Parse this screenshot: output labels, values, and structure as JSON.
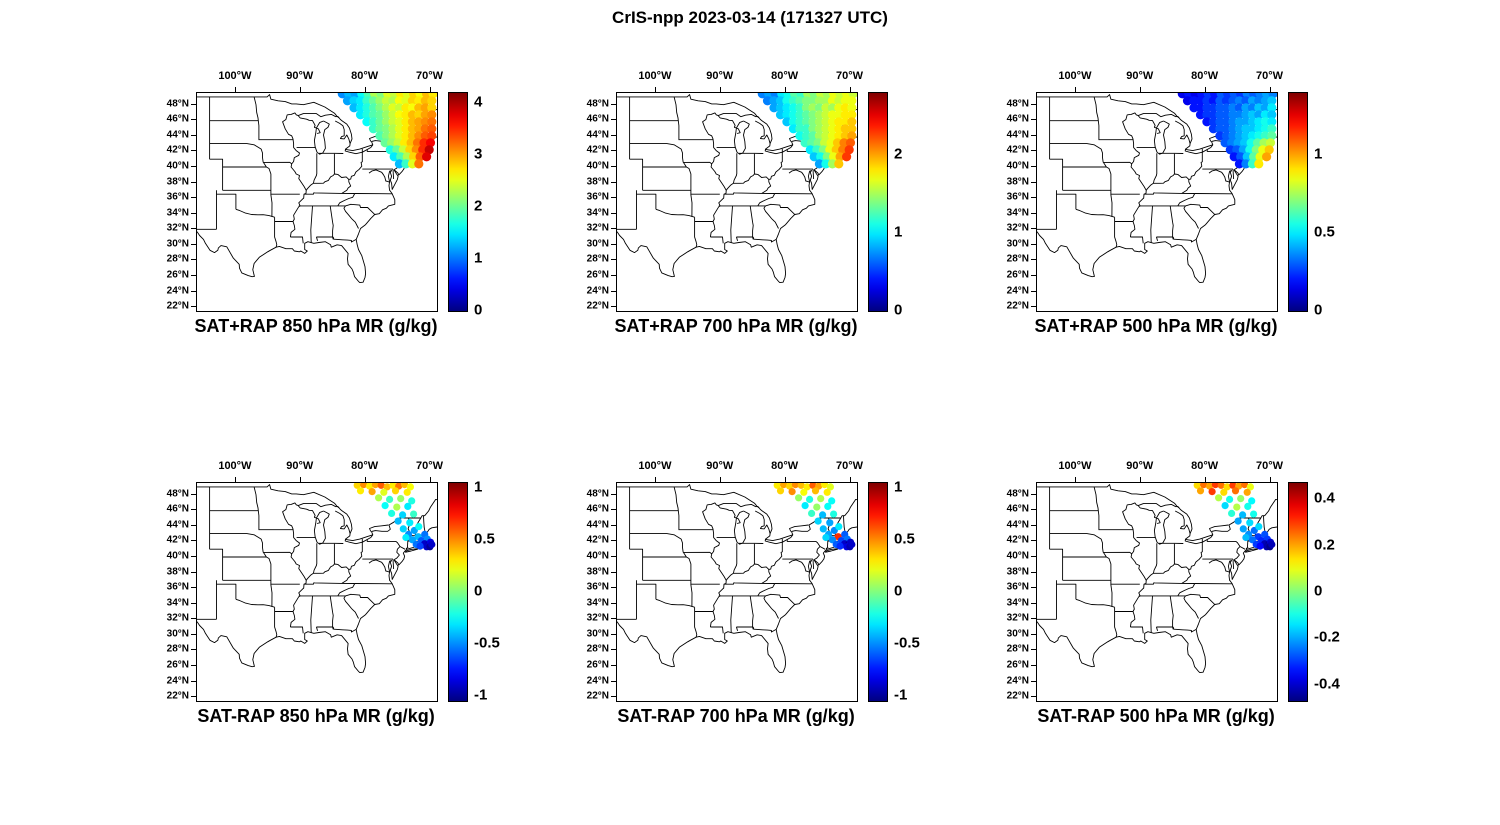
{
  "figure": {
    "title": "CrIS-npp 2023-03-14 (171327 UTC)"
  },
  "chart_data": {
    "type": "scatter",
    "title": "CrIS-npp 2023-03-14 (171327 UTC)",
    "colormap": "jet",
    "projection": {
      "lon_range": [
        -106,
        -69
      ],
      "lat_range": [
        21.5,
        49.5
      ]
    },
    "lon_ticks": {
      "values": [
        -100,
        -90,
        -80,
        -70
      ],
      "labels": [
        "100°W",
        "90°W",
        "80°W",
        "70°W"
      ]
    },
    "lat_ticks": {
      "values": [
        48,
        46,
        44,
        42,
        40,
        38,
        36,
        34,
        32,
        30,
        28,
        26,
        24,
        22
      ],
      "labels": [
        "48°N",
        "46°N",
        "44°N",
        "42°N",
        "40°N",
        "38°N",
        "36°N",
        "34°N",
        "32°N",
        "30°N",
        "28°N",
        "26°N",
        "24°N",
        "22°N"
      ]
    },
    "swath_rows_full": [
      {
        "lat": 49.4,
        "lon_start": -83.6,
        "lon_step": 1.0,
        "count": 15
      },
      {
        "lat": 48.5,
        "lon_start": -82.8,
        "lon_step": 1.0,
        "count": 14
      },
      {
        "lat": 47.6,
        "lon_start": -81.8,
        "lon_step": 1.0,
        "count": 13
      },
      {
        "lat": 46.7,
        "lon_start": -80.8,
        "lon_step": 1.0,
        "count": 12
      },
      {
        "lat": 45.8,
        "lon_start": -79.8,
        "lon_step": 1.0,
        "count": 11
      },
      {
        "lat": 44.9,
        "lon_start": -78.8,
        "lon_step": 1.0,
        "count": 10
      },
      {
        "lat": 44.0,
        "lon_start": -77.8,
        "lon_step": 1.0,
        "count": 9
      },
      {
        "lat": 43.1,
        "lon_start": -77.0,
        "lon_step": 1.0,
        "count": 8
      },
      {
        "lat": 42.2,
        "lon_start": -76.2,
        "lon_step": 1.0,
        "count": 7
      },
      {
        "lat": 41.3,
        "lon_start": -75.6,
        "lon_step": 1.0,
        "count": 6
      },
      {
        "lat": 40.4,
        "lon_start": -74.8,
        "lon_step": 1.0,
        "count": 4
      }
    ],
    "footprints_sparse": [
      [
        -81.3,
        49.2
      ],
      [
        -80.3,
        49.3
      ],
      [
        -79.4,
        49.1
      ],
      [
        -78.5,
        49.3
      ],
      [
        -77.6,
        49.2
      ],
      [
        -76.7,
        49.0
      ],
      [
        -75.8,
        49.2
      ],
      [
        -74.9,
        49.1
      ],
      [
        -74.0,
        49.3
      ],
      [
        -73.1,
        49.0
      ],
      [
        -80.8,
        48.5
      ],
      [
        -79.0,
        48.4
      ],
      [
        -77.2,
        48.3
      ],
      [
        -75.4,
        48.5
      ],
      [
        -73.6,
        48.3
      ],
      [
        -78.0,
        47.6
      ],
      [
        -76.3,
        47.4
      ],
      [
        -74.6,
        47.5
      ],
      [
        -72.9,
        47.2
      ],
      [
        -77.0,
        46.6
      ],
      [
        -75.2,
        46.4
      ],
      [
        -73.5,
        46.5
      ],
      [
        -76.0,
        45.6
      ],
      [
        -74.3,
        45.4
      ],
      [
        -72.6,
        45.5
      ],
      [
        -75.0,
        44.6
      ],
      [
        -73.2,
        44.4
      ],
      [
        -74.2,
        43.6
      ],
      [
        -72.5,
        43.4
      ],
      [
        -71.8,
        43.9
      ],
      [
        -73.4,
        42.9
      ],
      [
        -71.9,
        42.6
      ],
      [
        -70.9,
        42.9
      ],
      [
        -72.8,
        42.2
      ],
      [
        -71.4,
        42.1
      ],
      [
        -70.5,
        42.3
      ],
      [
        -73.8,
        42.5
      ],
      [
        -70.9,
        41.7
      ],
      [
        -70.3,
        41.6
      ],
      [
        -70.0,
        41.9
      ],
      [
        -70.6,
        41.3
      ],
      [
        -70.1,
        41.3
      ],
      [
        -69.8,
        41.6
      ],
      [
        -72.2,
        41.6
      ],
      [
        -71.6,
        41.4
      ]
    ],
    "panels": [
      {
        "id": "sat-plus-rap-850",
        "title": "SAT+RAP 850 hPa MR (g/kg)",
        "points": "full",
        "vmin": 0,
        "vmax": 4.2,
        "colorbar_ticks": [
          0,
          1,
          2,
          3,
          4
        ],
        "colorbar_tick_labels": [
          "0",
          "1",
          "2",
          "3",
          "4"
        ],
        "values_by_row": [
          [
            1.1,
            1.3,
            1.2,
            1.6,
            1.9,
            2.3,
            2.1,
            2.5,
            2.4,
            2.7,
            2.5,
            2.8,
            2.6,
            2.9,
            2.7
          ],
          [
            1.2,
            1.4,
            1.5,
            1.8,
            2.0,
            2.2,
            2.4,
            2.3,
            2.6,
            2.5,
            2.8,
            2.7,
            2.9,
            2.8
          ],
          [
            1.3,
            1.5,
            1.7,
            1.9,
            2.1,
            2.3,
            2.5,
            2.4,
            2.7,
            2.6,
            2.9,
            3.0,
            2.8
          ],
          [
            1.5,
            1.7,
            1.9,
            2.0,
            2.2,
            2.4,
            2.6,
            2.7,
            2.9,
            2.8,
            3.0,
            3.1
          ],
          [
            1.6,
            1.8,
            2.0,
            2.2,
            2.4,
            2.5,
            2.7,
            2.9,
            3.0,
            3.1,
            3.2
          ],
          [
            1.8,
            2.0,
            2.1,
            2.3,
            2.5,
            2.7,
            2.9,
            3.0,
            3.2,
            3.3
          ],
          [
            1.9,
            2.1,
            2.3,
            2.5,
            2.7,
            2.9,
            3.1,
            3.3,
            3.4
          ],
          [
            2.0,
            2.2,
            2.4,
            2.7,
            2.9,
            3.2,
            3.5,
            3.7
          ],
          [
            1.7,
            2.0,
            2.4,
            2.8,
            3.1,
            3.5,
            3.9
          ],
          [
            1.5,
            1.9,
            2.3,
            2.8,
            3.3,
            3.8
          ],
          [
            1.3,
            1.8,
            2.5,
            3.2
          ]
        ]
      },
      {
        "id": "sat-plus-rap-700",
        "title": "SAT+RAP 700 hPa MR (g/kg)",
        "points": "full",
        "vmin": 0,
        "vmax": 2.8,
        "colorbar_ticks": [
          0,
          1,
          2
        ],
        "colorbar_tick_labels": [
          "0",
          "1",
          "2"
        ],
        "values_by_row": [
          [
            0.7,
            0.8,
            0.7,
            1.0,
            1.1,
            1.3,
            1.2,
            1.5,
            1.4,
            1.6,
            1.5,
            1.7,
            1.6,
            1.7,
            1.6
          ],
          [
            0.7,
            0.8,
            0.9,
            1.1,
            1.2,
            1.3,
            1.4,
            1.4,
            1.5,
            1.5,
            1.7,
            1.6,
            1.7,
            1.7
          ],
          [
            0.8,
            0.9,
            1.0,
            1.1,
            1.2,
            1.4,
            1.5,
            1.4,
            1.6,
            1.5,
            1.7,
            1.8,
            1.7
          ],
          [
            0.9,
            1.0,
            1.1,
            1.2,
            1.3,
            1.4,
            1.5,
            1.6,
            1.7,
            1.7,
            1.8,
            1.8
          ],
          [
            0.9,
            1.1,
            1.2,
            1.3,
            1.4,
            1.5,
            1.6,
            1.7,
            1.8,
            1.8,
            1.9
          ],
          [
            1.0,
            1.2,
            1.2,
            1.4,
            1.5,
            1.6,
            1.7,
            1.8,
            1.9,
            1.9
          ],
          [
            1.1,
            1.2,
            1.3,
            1.5,
            1.6,
            1.7,
            1.8,
            1.9,
            2.0
          ],
          [
            1.2,
            1.3,
            1.4,
            1.6,
            1.7,
            1.9,
            2.1,
            2.2
          ],
          [
            1.0,
            1.2,
            1.4,
            1.7,
            1.9,
            2.1,
            2.3
          ],
          [
            0.9,
            1.1,
            1.4,
            1.7,
            2.0,
            2.3
          ],
          [
            0.8,
            1.1,
            1.5,
            1.9
          ]
        ]
      },
      {
        "id": "sat-plus-rap-500",
        "title": "SAT+RAP 500 hPa MR (g/kg)",
        "points": "full",
        "vmin": 0,
        "vmax": 1.4,
        "colorbar_ticks": [
          0,
          0.5,
          1
        ],
        "colorbar_tick_labels": [
          "0",
          "0.5",
          "1"
        ],
        "values_by_row": [
          [
            0.15,
            0.2,
            0.15,
            0.2,
            0.25,
            0.2,
            0.3,
            0.25,
            0.3,
            0.25,
            0.35,
            0.3,
            0.35,
            0.4,
            0.35
          ],
          [
            0.15,
            0.2,
            0.2,
            0.25,
            0.2,
            0.3,
            0.25,
            0.3,
            0.35,
            0.3,
            0.4,
            0.35,
            0.4,
            0.45
          ],
          [
            0.2,
            0.2,
            0.25,
            0.25,
            0.3,
            0.3,
            0.35,
            0.3,
            0.4,
            0.35,
            0.45,
            0.4,
            0.5
          ],
          [
            0.2,
            0.25,
            0.25,
            0.3,
            0.3,
            0.35,
            0.35,
            0.4,
            0.45,
            0.4,
            0.5,
            0.45
          ],
          [
            0.2,
            0.25,
            0.3,
            0.3,
            0.35,
            0.4,
            0.4,
            0.45,
            0.5,
            0.55,
            0.5
          ],
          [
            0.25,
            0.3,
            0.3,
            0.35,
            0.4,
            0.45,
            0.45,
            0.5,
            0.55,
            0.6
          ],
          [
            0.25,
            0.3,
            0.35,
            0.4,
            0.45,
            0.5,
            0.55,
            0.6,
            0.65
          ],
          [
            0.3,
            0.35,
            0.4,
            0.45,
            0.55,
            0.65,
            0.75,
            0.8
          ],
          [
            0.25,
            0.3,
            0.4,
            0.55,
            0.7,
            0.85,
            0.95
          ],
          [
            0.2,
            0.3,
            0.45,
            0.65,
            0.85,
            1.0
          ],
          [
            0.2,
            0.35,
            0.6,
            0.9
          ]
        ]
      },
      {
        "id": "sat-minus-rap-850",
        "title": "SAT-RAP 850 hPa MR (g/kg)",
        "points": "sparse",
        "vmin": -1.05,
        "vmax": 1.05,
        "colorbar_ticks": [
          -1,
          -0.5,
          0,
          0.5,
          1
        ],
        "colorbar_tick_labels": [
          "-1",
          "-0.5",
          "0",
          "0.5",
          "1"
        ],
        "values": [
          0.35,
          0.5,
          0.3,
          0.45,
          0.6,
          0.4,
          0.3,
          0.55,
          0.4,
          0.25,
          0.3,
          0.45,
          0.2,
          0.35,
          0.3,
          0.1,
          -0.15,
          0.05,
          -0.2,
          -0.25,
          0.1,
          -0.3,
          -0.2,
          -0.35,
          -0.15,
          -0.4,
          -0.3,
          -0.35,
          -0.45,
          -0.25,
          -0.5,
          -0.4,
          -0.55,
          -0.45,
          -0.6,
          -0.5,
          -0.3,
          -0.9,
          -0.95,
          -0.85,
          -0.9,
          -1.0,
          -0.9,
          -0.55,
          -0.65
        ]
      },
      {
        "id": "sat-minus-rap-700",
        "title": "SAT-RAP 700 hPa MR (g/kg)",
        "points": "sparse",
        "vmin": -1.05,
        "vmax": 1.05,
        "colorbar_ticks": [
          -1,
          -0.5,
          0,
          0.5,
          1
        ],
        "colorbar_tick_labels": [
          "-1",
          "-0.5",
          "0",
          "0.5",
          "1"
        ],
        "values": [
          0.3,
          0.45,
          0.35,
          0.5,
          0.4,
          0.3,
          0.6,
          0.45,
          0.3,
          0.2,
          0.35,
          0.5,
          0.25,
          0.4,
          0.3,
          0.05,
          -0.2,
          0.1,
          -0.25,
          -0.3,
          0.05,
          -0.25,
          -0.15,
          -0.4,
          -0.2,
          -0.35,
          -0.45,
          -0.4,
          -0.5,
          -0.3,
          -0.45,
          0.7,
          -0.6,
          -0.5,
          -0.65,
          -0.55,
          -0.35,
          -0.9,
          -1.0,
          -0.9,
          -0.85,
          -0.95,
          -0.9,
          -0.6,
          -0.7
        ]
      },
      {
        "id": "sat-minus-rap-500",
        "title": "SAT-RAP 500 hPa MR (g/kg)",
        "points": "sparse",
        "vmin": -0.47,
        "vmax": 0.47,
        "colorbar_ticks": [
          -0.4,
          -0.2,
          0,
          0.2,
          0.4
        ],
        "colorbar_tick_labels": [
          "-0.4",
          "-0.2",
          "0",
          "0.2",
          "0.4"
        ],
        "values": [
          0.15,
          0.25,
          0.2,
          0.3,
          0.25,
          0.15,
          0.3,
          0.2,
          0.25,
          0.1,
          0.2,
          0.3,
          0.15,
          0.25,
          0.2,
          0.05,
          -0.1,
          0.02,
          -0.12,
          -0.15,
          0.05,
          -0.1,
          -0.08,
          -0.18,
          -0.1,
          -0.2,
          -0.15,
          -0.2,
          -0.25,
          -0.15,
          -0.22,
          -0.3,
          -0.28,
          -0.25,
          -0.32,
          -0.3,
          -0.18,
          -0.42,
          -0.45,
          -0.4,
          -0.43,
          -0.46,
          -0.42,
          -0.3,
          -0.35
        ]
      }
    ]
  }
}
